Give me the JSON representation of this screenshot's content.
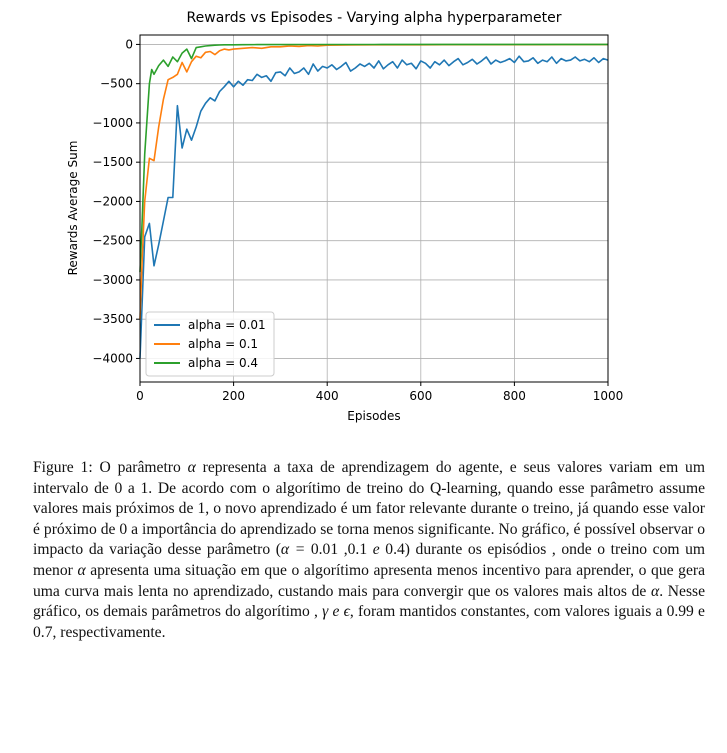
{
  "chart_data": {
    "type": "line",
    "title": "Rewards vs Episodes - Varying alpha hyperparameter",
    "xlabel": "Episodes",
    "ylabel": "Rewards Average Sum",
    "xlim": [
      0,
      1000
    ],
    "ylim": [
      -4300,
      120
    ],
    "xticks": [
      0,
      200,
      400,
      600,
      800,
      1000
    ],
    "yticks": [
      0,
      -500,
      -1000,
      -1500,
      -2000,
      -2500,
      -3000,
      -3500,
      -4000
    ],
    "xtick_labels": [
      "0",
      "200",
      "400",
      "600",
      "800",
      "1000"
    ],
    "ytick_labels": [
      "0",
      "−500",
      "−1000",
      "−1500",
      "−2000",
      "−2500",
      "−3000",
      "−3500",
      "−4000"
    ],
    "grid": true,
    "legend_position": "lower-left",
    "series": [
      {
        "name": "alpha = 0.01",
        "color": "#1f77b4",
        "x": [
          0,
          10,
          20,
          30,
          40,
          50,
          60,
          70,
          80,
          90,
          100,
          110,
          120,
          130,
          140,
          150,
          160,
          170,
          180,
          190,
          200,
          210,
          220,
          230,
          240,
          250,
          260,
          270,
          280,
          290,
          300,
          310,
          320,
          330,
          340,
          350,
          360,
          370,
          380,
          390,
          400,
          410,
          420,
          430,
          440,
          450,
          460,
          470,
          480,
          490,
          500,
          510,
          520,
          530,
          540,
          550,
          560,
          570,
          580,
          590,
          600,
          610,
          620,
          630,
          640,
          650,
          660,
          670,
          680,
          690,
          700,
          710,
          720,
          730,
          740,
          750,
          760,
          770,
          780,
          790,
          800,
          810,
          820,
          830,
          840,
          850,
          860,
          870,
          880,
          890,
          900,
          910,
          920,
          930,
          940,
          950,
          960,
          970,
          980,
          990,
          1000
        ],
        "y": [
          -4000,
          -2450,
          -2280,
          -2820,
          -2550,
          -2250,
          -1950,
          -1950,
          -780,
          -1320,
          -1080,
          -1220,
          -1050,
          -850,
          -750,
          -680,
          -720,
          -600,
          -540,
          -470,
          -540,
          -470,
          -520,
          -450,
          -460,
          -380,
          -420,
          -400,
          -470,
          -360,
          -350,
          -400,
          -300,
          -370,
          -350,
          -300,
          -380,
          -250,
          -340,
          -280,
          -300,
          -260,
          -320,
          -280,
          -230,
          -340,
          -300,
          -250,
          -280,
          -240,
          -300,
          -210,
          -310,
          -260,
          -220,
          -300,
          -200,
          -260,
          -240,
          -310,
          -210,
          -240,
          -300,
          -220,
          -260,
          -200,
          -270,
          -220,
          -180,
          -260,
          -230,
          -190,
          -250,
          -210,
          -160,
          -250,
          -200,
          -230,
          -210,
          -180,
          -230,
          -150,
          -220,
          -210,
          -170,
          -240,
          -200,
          -220,
          -160,
          -240,
          -180,
          -210,
          -200,
          -160,
          -210,
          -190,
          -220,
          -170,
          -230,
          -180,
          -200
        ]
      },
      {
        "name": "alpha = 0.1",
        "color": "#ff7f0e",
        "x": [
          0,
          5,
          10,
          20,
          30,
          40,
          50,
          60,
          70,
          80,
          90,
          100,
          110,
          120,
          130,
          140,
          150,
          160,
          170,
          180,
          190,
          200,
          220,
          240,
          260,
          280,
          300,
          320,
          340,
          360,
          380,
          400,
          450,
          500,
          550,
          600,
          650,
          700,
          750,
          800,
          850,
          900,
          950,
          1000
        ],
        "y": [
          -3500,
          -2700,
          -2000,
          -1450,
          -1480,
          -1050,
          -700,
          -450,
          -420,
          -380,
          -230,
          -350,
          -220,
          -150,
          -170,
          -100,
          -90,
          -130,
          -80,
          -60,
          -70,
          -60,
          -50,
          -40,
          -50,
          -30,
          -30,
          -20,
          -25,
          -15,
          -20,
          -10,
          -8,
          -5,
          -5,
          -5,
          -4,
          -4,
          -3,
          -3,
          -3,
          -2,
          -2,
          -2
        ]
      },
      {
        "name": "alpha = 0.4",
        "color": "#2ca02c",
        "x": [
          0,
          5,
          10,
          20,
          25,
          30,
          40,
          50,
          60,
          70,
          80,
          90,
          100,
          110,
          120,
          130,
          140,
          150,
          160,
          170,
          180,
          200,
          220,
          250,
          300,
          350,
          400,
          500,
          600,
          700,
          800,
          900,
          1000
        ],
        "y": [
          -2900,
          -2200,
          -1400,
          -500,
          -320,
          -380,
          -270,
          -200,
          -280,
          -160,
          -220,
          -110,
          -60,
          -180,
          -40,
          -30,
          -20,
          -15,
          -10,
          -8,
          -5,
          -5,
          -3,
          -2,
          -2,
          -1,
          -1,
          -1,
          0,
          0,
          0,
          0,
          0
        ]
      }
    ]
  },
  "caption": {
    "label": "Figure 1:",
    "p1": "O parâmetro",
    "alpha_sym": "α",
    "p2": "representa a taxa de aprendizagem do agente, e seus valores variam em um intervalo de 0 a 1. De acordo com o algorítimo de treino do Q-learning, quando esse parâmetro assume valores mais próximos de 1, o novo aprendizado é um fator relevante durante o treino, já quando esse valor é próximo de 0 a importância do aprendizado se torna menos significante. No gráfico, é possível observar o impacto da variação desse parâmetro (",
    "alpha_eq": "α =",
    "alpha_vals": "0.01 ,0.1",
    "e1": "e",
    "alpha_last": "0.4) durante os episódios , onde o treino com um menor",
    "p3": "apresenta uma situação em que o algorítimo apresenta menos incentivo para aprender, o que gera uma curva mais lenta no aprendizado, custando mais para convergir que os valores mais altos de",
    "p4": ". Nesse gráfico, os demais parâmetros do algorítimo ,",
    "gamma_sym": "γ",
    "e2": "e",
    "eps_sym": "ϵ",
    "p5": ", foram mantidos constantes, com valores iguais a 0.99 e 0.7, respectivamente."
  }
}
